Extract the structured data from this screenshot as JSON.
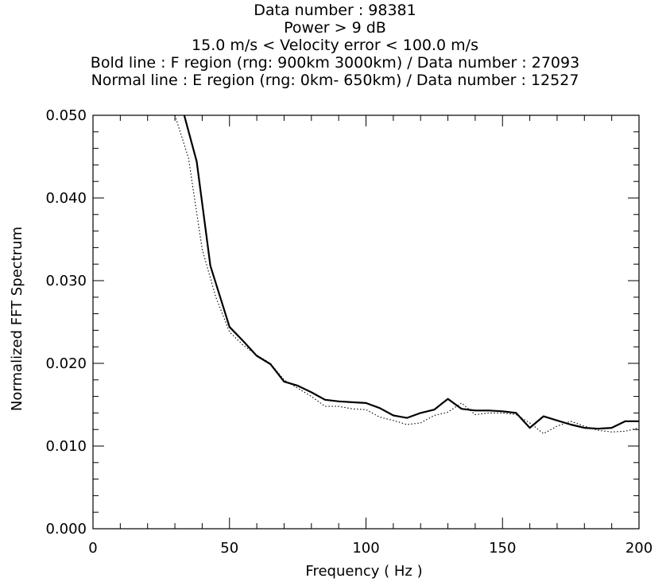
{
  "chart_data": {
    "type": "line",
    "title_lines": [
      "Data number : 98381",
      "Power > 9 dB",
      "15.0 m/s < Velocity error < 100.0 m/s",
      "Bold line : F region (rng: 900km 3000km) / Data number : 27093",
      "Normal line : E region (rng: 0km- 650km) / Data number : 12527"
    ],
    "xlabel": "Frequency ( Hz )",
    "ylabel": "Normalized FFT Spectrum",
    "xlim": [
      0,
      200
    ],
    "ylim": [
      0.0,
      0.05
    ],
    "x_ticks": [
      0,
      50,
      100,
      150,
      200
    ],
    "x_tick_labels": [
      "0",
      "50",
      "100",
      "150",
      "200"
    ],
    "y_ticks": [
      0.0,
      0.01,
      0.02,
      0.03,
      0.04,
      0.05
    ],
    "y_tick_labels": [
      "0.000",
      "0.010",
      "0.020",
      "0.030",
      "0.040",
      "0.050"
    ],
    "grid": false,
    "series": [
      {
        "style": "bold",
        "x": [
          33,
          38,
          43,
          50,
          55,
          60,
          65,
          70,
          75,
          80,
          85,
          90,
          95,
          100,
          105,
          110,
          115,
          120,
          125,
          130,
          135,
          140,
          145,
          150,
          155,
          160,
          165,
          170,
          175,
          180,
          185,
          190,
          195,
          200
        ],
        "y": [
          0.0505,
          0.0444,
          0.0318,
          0.0244,
          0.0227,
          0.0209,
          0.0199,
          0.0178,
          0.0173,
          0.0165,
          0.0156,
          0.0154,
          0.0153,
          0.0152,
          0.0146,
          0.0137,
          0.0134,
          0.014,
          0.0144,
          0.0157,
          0.0145,
          0.0143,
          0.0143,
          0.0142,
          0.014,
          0.0122,
          0.0136,
          0.0131,
          0.0126,
          0.0122,
          0.0121,
          0.0122,
          0.013,
          0.013
        ]
      },
      {
        "style": "dotted",
        "x": [
          30,
          35,
          40,
          45,
          50,
          55,
          60,
          65,
          70,
          75,
          80,
          85,
          90,
          95,
          100,
          105,
          110,
          115,
          120,
          125,
          130,
          135,
          140,
          145,
          150,
          155,
          160,
          165,
          170,
          175,
          180,
          185,
          190,
          195,
          200
        ],
        "y": [
          0.05,
          0.0448,
          0.0338,
          0.028,
          0.0238,
          0.0222,
          0.021,
          0.02,
          0.018,
          0.017,
          0.016,
          0.0148,
          0.0148,
          0.0145,
          0.0144,
          0.0135,
          0.0131,
          0.0126,
          0.0128,
          0.0137,
          0.0141,
          0.0152,
          0.0138,
          0.014,
          0.014,
          0.0138,
          0.0128,
          0.0115,
          0.0124,
          0.013,
          0.0124,
          0.0119,
          0.0117,
          0.0118,
          0.0122
        ]
      }
    ]
  }
}
